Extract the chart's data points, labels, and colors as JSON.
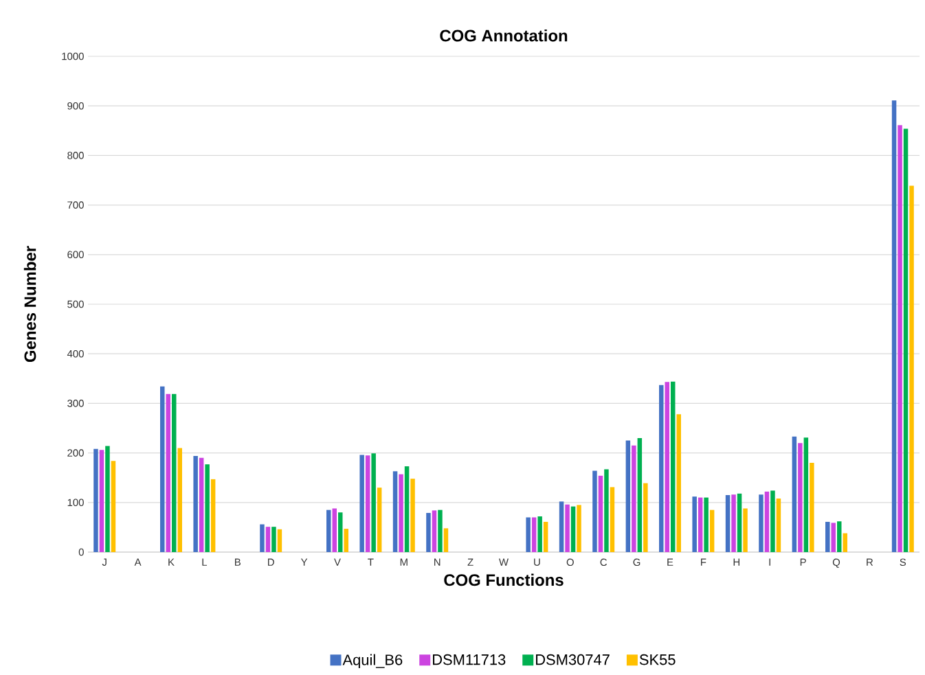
{
  "chart_data": {
    "type": "bar",
    "title": "COG Annotation",
    "xlabel": "COG Functions",
    "ylabel": "Genes Number",
    "categories": [
      "J",
      "A",
      "K",
      "L",
      "B",
      "D",
      "Y",
      "V",
      "T",
      "M",
      "N",
      "Z",
      "W",
      "U",
      "O",
      "C",
      "G",
      "E",
      "F",
      "H",
      "I",
      "P",
      "Q",
      "R",
      "S"
    ],
    "series": [
      {
        "name": "Aquil_B6",
        "color": "#4472c4",
        "values": [
          208,
          0,
          334,
          194,
          0,
          56,
          0,
          85,
          196,
          163,
          79,
          0,
          0,
          70,
          102,
          164,
          225,
          337,
          112,
          115,
          116,
          233,
          61,
          0,
          911
        ]
      },
      {
        "name": "DSM11713",
        "color": "#cc44e0",
        "values": [
          206,
          0,
          319,
          190,
          0,
          51,
          0,
          88,
          195,
          157,
          84,
          0,
          0,
          70,
          96,
          154,
          215,
          343,
          110,
          116,
          122,
          220,
          59,
          0,
          861
        ]
      },
      {
        "name": "DSM30747",
        "color": "#00b050",
        "values": [
          214,
          0,
          319,
          177,
          0,
          51,
          0,
          80,
          199,
          173,
          85,
          0,
          0,
          72,
          92,
          167,
          230,
          344,
          110,
          118,
          124,
          231,
          62,
          0,
          854
        ]
      },
      {
        "name": "SK55",
        "color": "#ffc000",
        "values": [
          184,
          0,
          210,
          147,
          0,
          46,
          0,
          47,
          130,
          148,
          48,
          0,
          0,
          61,
          95,
          131,
          139,
          278,
          85,
          88,
          108,
          180,
          38,
          0,
          739
        ]
      }
    ],
    "ylim": [
      0,
      1000
    ],
    "yticks": [
      0,
      100,
      200,
      300,
      400,
      500,
      600,
      700,
      800,
      900,
      1000
    ],
    "grid": "y",
    "legend": "bottom"
  }
}
